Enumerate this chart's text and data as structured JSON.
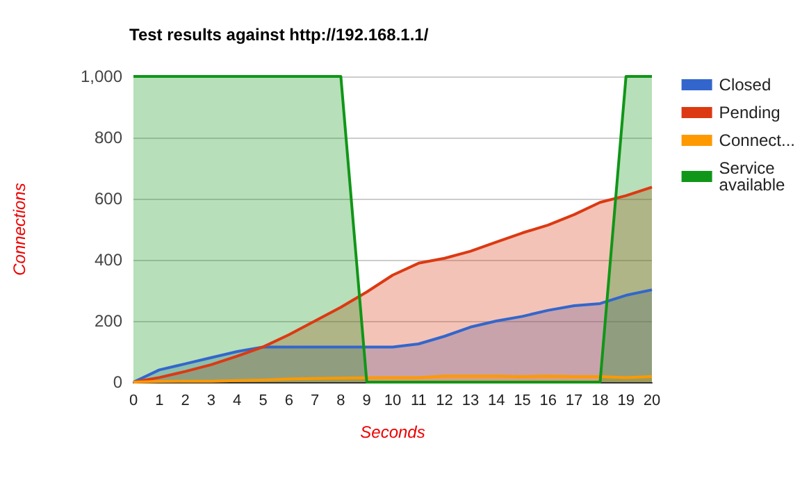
{
  "chart_data": {
    "type": "area",
    "title": "Test results against http://192.168.1.1/",
    "xlabel": "Seconds",
    "ylabel": "Connections",
    "x": [
      0,
      1,
      2,
      3,
      4,
      5,
      6,
      7,
      8,
      9,
      10,
      11,
      12,
      13,
      14,
      15,
      16,
      17,
      18,
      19,
      20
    ],
    "series": [
      {
        "name": "Closed",
        "color": "#3366cc",
        "values": [
          0,
          40,
          60,
          80,
          100,
          115,
          115,
          115,
          115,
          115,
          115,
          125,
          150,
          180,
          200,
          215,
          235,
          250,
          257,
          284,
          302
        ]
      },
      {
        "name": "Pending",
        "color": "#dc3912",
        "values": [
          0,
          15,
          35,
          57,
          85,
          115,
          155,
          200,
          245,
          295,
          350,
          389,
          405,
          428,
          458,
          488,
          514,
          548,
          588,
          610,
          638
        ]
      },
      {
        "name": "Connect...",
        "color": "#ff9900",
        "values": [
          0,
          2,
          3,
          3,
          5,
          7,
          10,
          12,
          13,
          14,
          15,
          15,
          20,
          20,
          20,
          18,
          20,
          18,
          18,
          15,
          18
        ]
      },
      {
        "name": "Service available",
        "color": "#109618",
        "values": [
          1000,
          1000,
          1000,
          1000,
          1000,
          1000,
          1000,
          1000,
          1000,
          0,
          0,
          0,
          0,
          0,
          0,
          0,
          0,
          0,
          0,
          1000,
          1000
        ]
      }
    ],
    "xlim": [
      0,
      20
    ],
    "xticks": [
      0,
      1,
      2,
      3,
      4,
      5,
      6,
      7,
      8,
      9,
      10,
      11,
      12,
      13,
      14,
      15,
      16,
      17,
      18,
      19,
      20
    ],
    "ylim": [
      0,
      1000
    ],
    "yticks": [
      {
        "value": 0,
        "label": "0"
      },
      {
        "value": 200,
        "label": "200"
      },
      {
        "value": 400,
        "label": "400"
      },
      {
        "value": 600,
        "label": "600"
      },
      {
        "value": 800,
        "label": "800"
      },
      {
        "value": 1000,
        "label": "1,000"
      }
    ],
    "grid": "y",
    "legend": "right",
    "marker": "none"
  }
}
